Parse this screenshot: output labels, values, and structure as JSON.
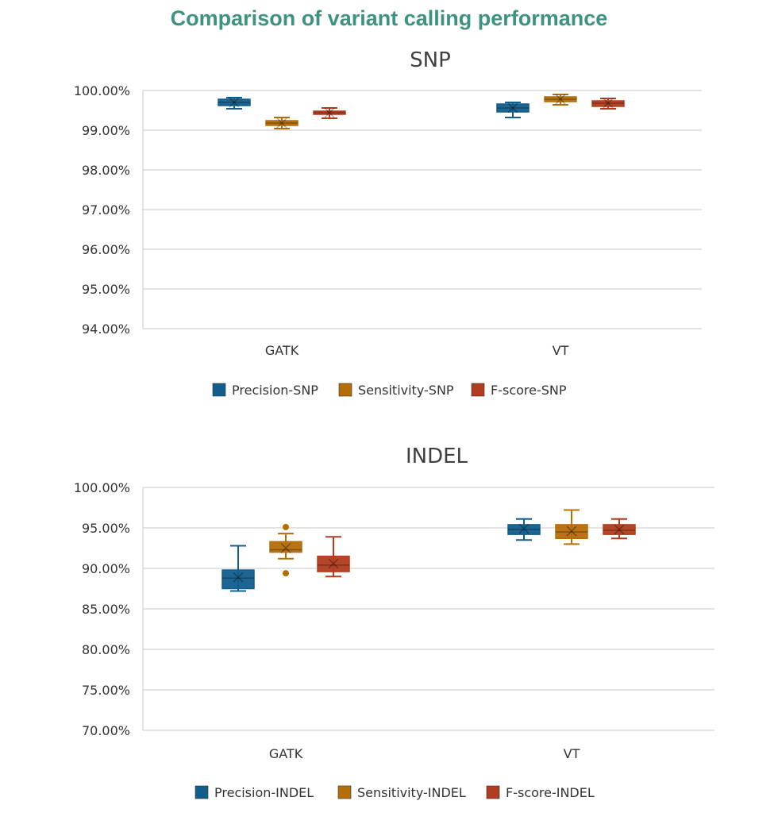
{
  "title": "Comparison of variant calling performance",
  "colors": {
    "precision": "#115d8c",
    "sensitivity": "#b56d06",
    "fscore": "#b23c1f",
    "title": "#3d9280"
  },
  "chart_data": [
    {
      "type": "box",
      "title": "SNP",
      "categories": [
        "GATK",
        "VT"
      ],
      "ylim": [
        0.94,
        1.0
      ],
      "yticks": [
        "94.00%",
        "95.00%",
        "96.00%",
        "97.00%",
        "98.00%",
        "99.00%",
        "100.00%"
      ],
      "tick_values": [
        94,
        95,
        96,
        97,
        98,
        99,
        100
      ],
      "grid": true,
      "legend": "bottom",
      "series": [
        {
          "name": "Precision-SNP",
          "color_key": "precision",
          "boxes": [
            {
              "min": 99.54,
              "q1": 99.62,
              "median": 99.7,
              "mean": 99.7,
              "q3": 99.78,
              "max": 99.82,
              "outliers": []
            },
            {
              "min": 99.32,
              "q1": 99.46,
              "median": 99.56,
              "mean": 99.56,
              "q3": 99.66,
              "max": 99.7,
              "outliers": []
            }
          ]
        },
        {
          "name": "Sensitivity-SNP",
          "color_key": "sensitivity",
          "boxes": [
            {
              "min": 99.04,
              "q1": 99.12,
              "median": 99.18,
              "mean": 99.18,
              "q3": 99.24,
              "max": 99.32,
              "outliers": []
            },
            {
              "min": 99.64,
              "q1": 99.72,
              "median": 99.78,
              "mean": 99.78,
              "q3": 99.84,
              "max": 99.9,
              "outliers": []
            }
          ]
        },
        {
          "name": "F-score-SNP",
          "color_key": "fscore",
          "boxes": [
            {
              "min": 99.3,
              "q1": 99.4,
              "median": 99.44,
              "mean": 99.44,
              "q3": 99.48,
              "max": 99.56,
              "outliers": []
            },
            {
              "min": 99.54,
              "q1": 99.6,
              "median": 99.68,
              "mean": 99.68,
              "q3": 99.74,
              "max": 99.8,
              "outliers": []
            }
          ]
        }
      ]
    },
    {
      "type": "box",
      "title": "INDEL",
      "categories": [
        "GATK",
        "VT"
      ],
      "ylim": [
        0.7,
        1.0
      ],
      "yticks": [
        "70.00%",
        "75.00%",
        "80.00%",
        "85.00%",
        "90.00%",
        "95.00%",
        "100.00%"
      ],
      "tick_values": [
        70,
        75,
        80,
        85,
        90,
        95,
        100
      ],
      "grid": true,
      "legend": "bottom",
      "series": [
        {
          "name": "Precision-INDEL",
          "color_key": "precision",
          "boxes": [
            {
              "min": 87.2,
              "q1": 87.5,
              "median": 88.8,
              "mean": 88.9,
              "q3": 89.8,
              "max": 92.8,
              "outliers": []
            },
            {
              "min": 93.5,
              "q1": 94.2,
              "median": 94.8,
              "mean": 94.9,
              "q3": 95.4,
              "max": 96.1,
              "outliers": []
            }
          ]
        },
        {
          "name": "Sensitivity-INDEL",
          "color_key": "sensitivity",
          "boxes": [
            {
              "min": 91.2,
              "q1": 92.0,
              "median": 92.3,
              "mean": 92.5,
              "q3": 93.3,
              "max": 94.3,
              "outliers": [
                95.1,
                89.4
              ]
            },
            {
              "min": 93.0,
              "q1": 93.7,
              "median": 94.5,
              "mean": 94.6,
              "q3": 95.4,
              "max": 97.2,
              "outliers": []
            }
          ]
        },
        {
          "name": "F-score-INDEL",
          "color_key": "fscore",
          "boxes": [
            {
              "min": 89.0,
              "q1": 89.6,
              "median": 90.4,
              "mean": 90.6,
              "q3": 91.5,
              "max": 93.9,
              "outliers": []
            },
            {
              "min": 93.7,
              "q1": 94.2,
              "median": 94.7,
              "mean": 94.8,
              "q3": 95.4,
              "max": 96.1,
              "outliers": []
            }
          ]
        }
      ]
    }
  ]
}
